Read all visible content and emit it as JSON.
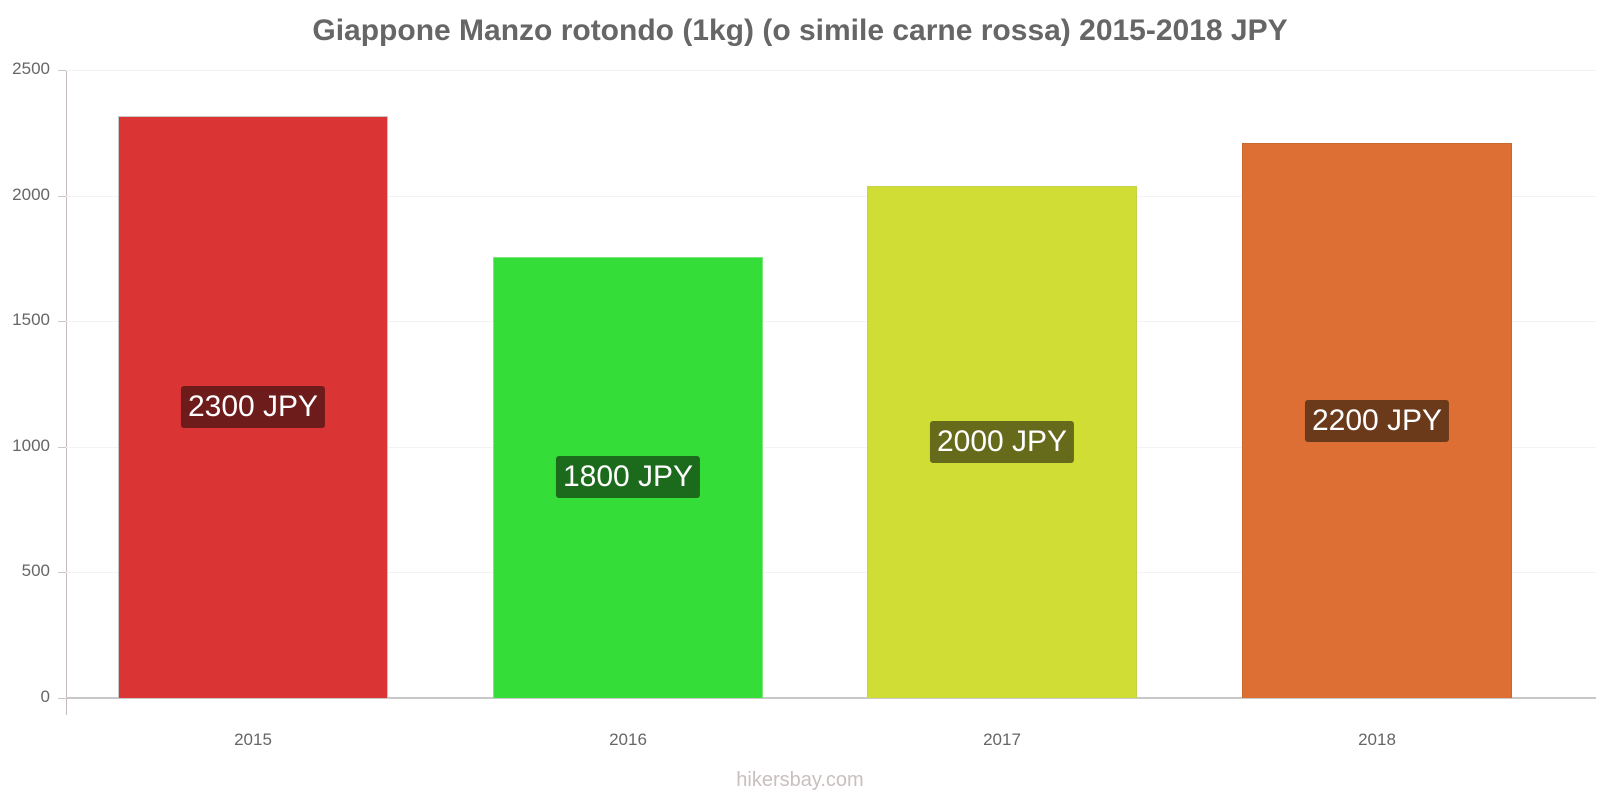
{
  "title": "Giappone Manzo rotondo (1kg) (o simile carne rossa) 2015-2018 JPY",
  "watermark": "hikersbay.com",
  "y_ticks": [
    "0",
    "500",
    "1000",
    "1500",
    "2000",
    "2500"
  ],
  "bars": [
    {
      "year": "2015",
      "label": "2300 JPY",
      "color": "#da3434",
      "border": "#c8c8c8",
      "label_bg": "#6e1b1b"
    },
    {
      "year": "2016",
      "label": "1800 JPY",
      "color": "#35dd38",
      "border": "#7ae67b",
      "label_bg": "#1c6b1d"
    },
    {
      "year": "2017",
      "label": "2000 JPY",
      "color": "#cfdd34",
      "border": "#c4d34a",
      "label_bg": "#666b1b"
    },
    {
      "year": "2018",
      "label": "2200 JPY",
      "color": "#dd6f34",
      "border": "#c8682e",
      "label_bg": "#6b3a1b"
    }
  ],
  "chart_data": {
    "type": "bar",
    "title": "Giappone Manzo rotondo (1kg) (o simile carne rossa) 2015-2018 JPY",
    "categories": [
      "2015",
      "2016",
      "2017",
      "2018"
    ],
    "values": [
      2317,
      1756,
      2038,
      2209
    ],
    "data_labels": [
      "2300 JPY",
      "1800 JPY",
      "2000 JPY",
      "2200 JPY"
    ],
    "xlabel": "",
    "ylabel": "",
    "ylim": [
      0,
      2500
    ],
    "yticks": [
      0,
      500,
      1000,
      1500,
      2000,
      2500
    ],
    "grid": true,
    "legend": "none",
    "colors": [
      "#da3434",
      "#35dd38",
      "#cfdd34",
      "#dd6f34"
    ],
    "source": "hikersbay.com"
  }
}
